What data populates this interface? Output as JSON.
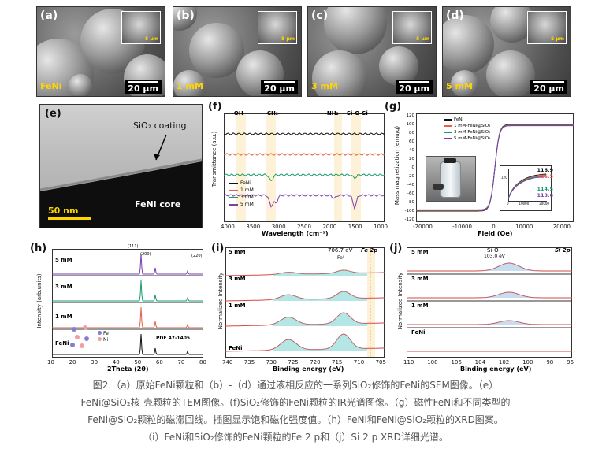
{
  "sem_panels": [
    {
      "label": "(a)",
      "sample": "FeNi",
      "scale": "20 μm",
      "inset_scale": "5 μm"
    },
    {
      "label": "(b)",
      "sample": "1 mM",
      "scale": "20 μm",
      "inset_scale": "5 μm"
    },
    {
      "label": "(c)",
      "sample": "3 mM",
      "scale": "20 μm",
      "inset_scale": "5 μm"
    },
    {
      "label": "(d)",
      "sample": "5 mM",
      "scale": "20 μm",
      "inset_scale": "5 μm"
    }
  ],
  "tem": {
    "label": "(e)",
    "coating": "SiO₂ coating",
    "core": "FeNi core",
    "scale": "50 nm"
  },
  "ir": {
    "label": "(f)",
    "peaks": [
      "-OH",
      "-CH₂-",
      "-NH₂",
      "Si-O-Si"
    ],
    "ylabel": "Transmittance (a.u.)",
    "xlabel": "Wavelength (cm⁻¹)",
    "xticks": [
      "4000",
      "3500",
      "3000",
      "2500",
      "2000",
      "1500",
      "1000"
    ],
    "legend": [
      "FeNi",
      "1 mM",
      "3 mM",
      "5 mM"
    ],
    "colors": [
      "#111111",
      "#e0624a",
      "#1a9a6c",
      "#7b3fb0"
    ]
  },
  "mag": {
    "label": "(g)",
    "ylabel": "Mass magnetization (emu/g)",
    "xlabel": "Field (Oe)",
    "yticks": [
      "120",
      "100",
      "80",
      "60",
      "40",
      "20",
      "0",
      "-20",
      "-40",
      "-60",
      "-80",
      "-100",
      "-120"
    ],
    "xticks": [
      "-20000",
      "-10000",
      "0",
      "10000",
      "20000"
    ],
    "legend": [
      "FeNi",
      "1 mM-FeNi@SiO₂",
      "3 mM-FeNi@SiO₂",
      "5 mM-FeNi@SiO₂"
    ],
    "values": [
      "116.9",
      "115.5",
      "114.5",
      "113.6"
    ],
    "inset_ytick": "120",
    "inset_xticks": [
      "0",
      "10000",
      "20000"
    ],
    "colors": [
      "#111111",
      "#e0624a",
      "#1a9a6c",
      "#7b3fb0"
    ]
  },
  "xrd": {
    "label": "(h)",
    "ylabel": "Intensity (arb.units)",
    "xlabel": "2Theta (2θ)",
    "xticks": [
      "10",
      "20",
      "30",
      "40",
      "50",
      "60",
      "70",
      "80"
    ],
    "rows": [
      "5 mM",
      "3 mM",
      "1 mM",
      "FeNi"
    ],
    "peaks": [
      "(111)",
      "(200)",
      "(220)"
    ],
    "pdf": "PDF 47-1405",
    "atoms": [
      "Fe",
      "Ni"
    ],
    "colors": [
      "#7b3fb0",
      "#1a9a6c",
      "#e0624a",
      "#111111"
    ]
  },
  "fe2p": {
    "label": "(i)",
    "title": "Fe 2p",
    "ylabel": "Normalized Intensity",
    "xlabel": "Binding energy (eV)",
    "xticks": [
      "740",
      "735",
      "730",
      "725",
      "720",
      "715",
      "710",
      "705"
    ],
    "rows": [
      "5 mM",
      "3 mM",
      "1 mM",
      "FeNi"
    ],
    "peak_ev": "706.7 eV",
    "peak_label": "Fe⁰"
  },
  "si2p": {
    "label": "(j)",
    "title": "Si 2p",
    "ylabel": "Normalized Intensity",
    "xlabel": "Binding energy (eV)",
    "xticks": [
      "110",
      "108",
      "106",
      "104",
      "102",
      "100",
      "98",
      "96"
    ],
    "rows": [
      "5 mM",
      "3 mM",
      "1 mM",
      "FeNi"
    ],
    "peak_label": "Si-O",
    "peak_ev": "103.0 eV"
  },
  "caption": [
    "图2.（a）原始FeNi颗粒和（b）-（d）通过液相反应的一系列SiO₂修饰的FeNi的SEM图像。（e）",
    "FeNi@SiO₂核-壳颗粒的TEM图像。(f)SiO₂修饰的FeNi颗粒的IR光谱图像。（g）磁性FeNi和不同类型的",
    "FeNi@SiO₂颗粒的磁滞回线。插图显示饱和磁化强度值。（h）FeNi和FeNi@SiO₂颗粒的XRD图案。",
    "（i）FeNi和SiO₂修饰的FeNi颗粒的Fe 2 p和（j）Si 2 p XRD详细光谱。"
  ]
}
